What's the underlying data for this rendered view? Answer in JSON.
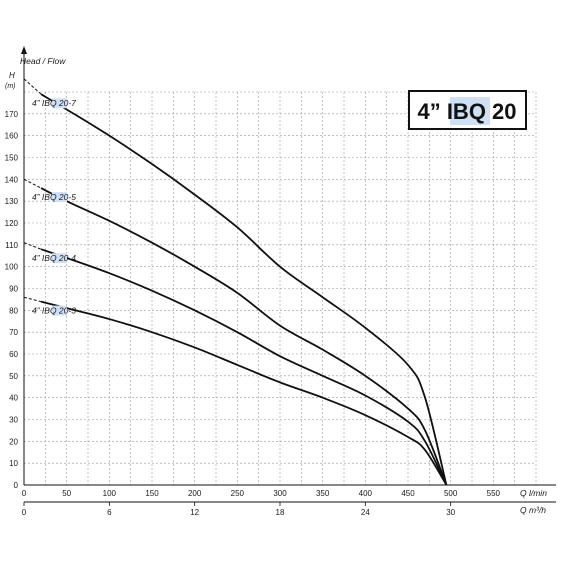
{
  "chart_data": {
    "type": "line",
    "title": "4” IBQ 20",
    "y_axis_title": "Head / Flow",
    "ylabel": "H",
    "ylabel_unit": "(m)",
    "xlabel": "Q l/min",
    "xlabel_secondary": "Q m³/h",
    "xlim": [
      0,
      600
    ],
    "ylim": [
      0,
      180
    ],
    "x_ticks": [
      0,
      50,
      100,
      150,
      200,
      250,
      300,
      350,
      400,
      450,
      500,
      550
    ],
    "y_ticks": [
      0,
      10,
      20,
      30,
      40,
      50,
      60,
      70,
      80,
      90,
      100,
      110,
      120,
      130,
      140,
      150,
      160,
      170
    ],
    "x_ticks_secondary": [
      0,
      6,
      12,
      18,
      24,
      30
    ],
    "grid": true,
    "series": [
      {
        "name": "4” IBQ 20-7",
        "x": [
          20,
          50,
          100,
          150,
          200,
          250,
          300,
          350,
          400,
          450,
          470,
          495
        ],
        "y": [
          179,
          172,
          160,
          147,
          133,
          118,
          100,
          86,
          72,
          55,
          40,
          0
        ]
      },
      {
        "name": "4” IBQ 20-5",
        "x": [
          20,
          50,
          100,
          150,
          200,
          250,
          300,
          350,
          400,
          450,
          470,
          495
        ],
        "y": [
          136,
          130,
          121,
          111,
          100,
          88,
          73,
          62,
          50,
          35,
          25,
          0
        ]
      },
      {
        "name": "4” IBQ 20-4",
        "x": [
          20,
          50,
          100,
          150,
          200,
          250,
          300,
          350,
          400,
          450,
          470,
          495
        ],
        "y": [
          108,
          104,
          97,
          89,
          80,
          70,
          59,
          50,
          41,
          29,
          20,
          0
        ]
      },
      {
        "name": "4” IBQ 20-3",
        "x": [
          20,
          50,
          100,
          150,
          200,
          250,
          300,
          350,
          400,
          450,
          470,
          495
        ],
        "y": [
          84,
          81,
          76,
          70,
          63,
          55,
          47,
          40,
          32,
          22,
          16,
          0
        ]
      }
    ],
    "extrapolated_to_y": [
      186,
      140,
      111,
      86
    ],
    "colors": {
      "curve": "#111111",
      "grid": "#9a9a9a",
      "label_highlight": "#cfe0f5"
    }
  }
}
